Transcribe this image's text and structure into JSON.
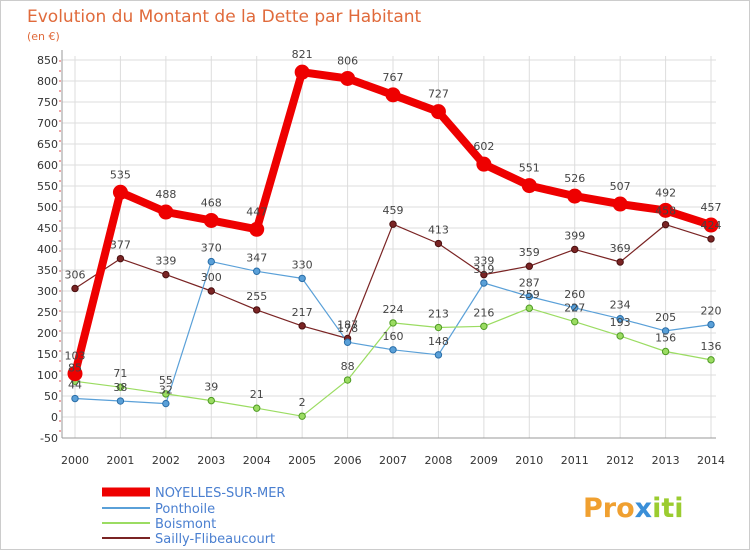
{
  "chart_data": {
    "type": "line",
    "title": "Evolution du Montant de la Dette par Habitant",
    "subtitle": "(en €)",
    "xlabel": "",
    "ylabel": "",
    "x": [
      "2000",
      "2001",
      "2002",
      "2003",
      "2004",
      "2005",
      "2006",
      "2007",
      "2008",
      "2009",
      "2010",
      "2011",
      "2012",
      "2013",
      "2014"
    ],
    "ylim": [
      -50,
      850
    ],
    "yticks": [
      "-50",
      "0",
      "50",
      "100",
      "150",
      "200",
      "250",
      "300",
      "350",
      "400",
      "450",
      "500",
      "550",
      "600",
      "650",
      "700",
      "750",
      "800",
      "850"
    ],
    "grid": true,
    "legend_position": "bottom-left",
    "series": [
      {
        "name": "NOYELLES-SUR-MER",
        "color": "#ee0000",
        "values": [
          103,
          535,
          488,
          468,
          447,
          821,
          806,
          767,
          727,
          602,
          551,
          526,
          507,
          492,
          457
        ]
      },
      {
        "name": "Ponthoile",
        "color": "#5aa0d8",
        "values": [
          44,
          38,
          32,
          370,
          347,
          330,
          178,
          160,
          148,
          319,
          287,
          260,
          234,
          205,
          220
        ]
      },
      {
        "name": "Boismont",
        "color": "#9bdc62",
        "values": [
          85,
          71,
          55,
          39,
          21,
          2,
          88,
          224,
          213,
          216,
          259,
          227,
          193,
          156,
          136
        ]
      },
      {
        "name": "Sailly-Flibeaucourt",
        "color": "#7a2424",
        "values": [
          306,
          377,
          339,
          300,
          255,
          217,
          187,
          459,
          413,
          339,
          359,
          399,
          369,
          458,
          424
        ]
      }
    ],
    "labels": [
      [
        "103",
        "535",
        "488",
        "468",
        "447",
        "821",
        "806",
        "767",
        "727",
        "602",
        "551",
        "526",
        "507",
        "492",
        "457"
      ],
      [
        "44",
        "38",
        "32",
        "370",
        "347",
        "330",
        "178",
        "160",
        "148",
        "319",
        "287",
        "260",
        "234",
        "205",
        "220"
      ],
      [
        "85",
        "71",
        "55",
        "39",
        "21",
        "2",
        "88",
        "224",
        "213",
        "216",
        "259",
        "227",
        "193",
        "156",
        "136"
      ],
      [
        "306",
        "377",
        "339",
        "300",
        "255",
        "217",
        "187",
        "459",
        "413",
        "339",
        "359",
        "399",
        "369",
        "458",
        "424"
      ]
    ]
  },
  "logo": {
    "text_pro": "Pro",
    "text_x": "x",
    "text_iti": "iti"
  }
}
